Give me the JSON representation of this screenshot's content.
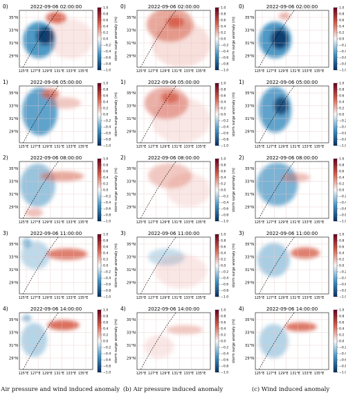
{
  "figure": {
    "columns": [
      {
        "caption": "(a) Air pressure and wind induced anomaly",
        "pattern": "total"
      },
      {
        "caption": "(b) Air pressure induced anomaly",
        "pattern": "pressure"
      },
      {
        "caption": "(c) Wind induced anomaly",
        "pattern": "wind"
      }
    ],
    "rows": [
      {
        "tag": "0)",
        "time": "2022-09-06 02:00:00"
      },
      {
        "tag": "1)",
        "time": "2022-09-06 05:00:00"
      },
      {
        "tag": "2)",
        "time": "2022-09-06 08:00:00"
      },
      {
        "tag": "3)",
        "time": "2022-09-06 11:00:00"
      },
      {
        "tag": "4)",
        "time": "2022-09-06 14:00:00"
      }
    ],
    "lat_ticks": [
      "35°N",
      "33°N",
      "31°N",
      "29°N"
    ],
    "lon_ticks": [
      "125°E",
      "127°E",
      "129°E",
      "131°E",
      "133°E",
      "135°E"
    ],
    "colorbar": {
      "label": "storm surge anomaly (m)",
      "ticks": [
        "1.0",
        "0.8",
        "0.6",
        "0.4",
        "0.2",
        "0.0",
        "−0.2",
        "−0.4",
        "−0.6",
        "−0.8",
        "−1.0"
      ],
      "colors": {
        "max": "#67001f",
        "pos": "#d6604d",
        "mid": "#f7f7f7",
        "neg": "#4393c3",
        "min": "#053061"
      }
    },
    "map_colors": {
      "land": "#777777",
      "sea": "#ffffff",
      "track": "#000000"
    }
  }
}
